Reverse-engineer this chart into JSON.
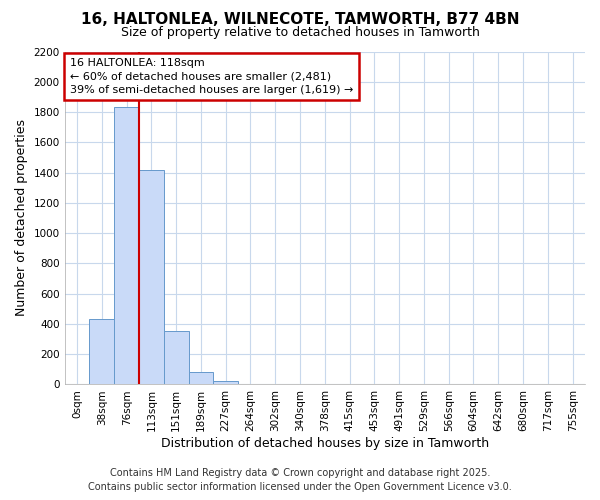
{
  "title": "16, HALTONLEA, WILNECOTE, TAMWORTH, B77 4BN",
  "subtitle": "Size of property relative to detached houses in Tamworth",
  "xlabel": "Distribution of detached houses by size in Tamworth",
  "ylabel": "Number of detached properties",
  "categories": [
    "0sqm",
    "38sqm",
    "76sqm",
    "113sqm",
    "151sqm",
    "189sqm",
    "227sqm",
    "264sqm",
    "302sqm",
    "340sqm",
    "378sqm",
    "415sqm",
    "453sqm",
    "491sqm",
    "529sqm",
    "566sqm",
    "604sqm",
    "642sqm",
    "680sqm",
    "717sqm",
    "755sqm"
  ],
  "values": [
    0,
    430,
    1830,
    1420,
    350,
    80,
    25,
    5,
    0,
    0,
    0,
    0,
    0,
    0,
    0,
    0,
    0,
    0,
    0,
    0,
    0
  ],
  "bar_color": "#c9daf8",
  "bar_edge_color": "#6699cc",
  "vline_index": 2.5,
  "vline_color": "#cc0000",
  "annotation_text": "16 HALTONLEA: 118sqm\n← 60% of detached houses are smaller (2,481)\n39% of semi-detached houses are larger (1,619) →",
  "annotation_box_color": "#ffffff",
  "annotation_box_edge": "#cc0000",
  "ylim": [
    0,
    2200
  ],
  "yticks": [
    0,
    200,
    400,
    600,
    800,
    1000,
    1200,
    1400,
    1600,
    1800,
    2000,
    2200
  ],
  "footer_line1": "Contains HM Land Registry data © Crown copyright and database right 2025.",
  "footer_line2": "Contains public sector information licensed under the Open Government Licence v3.0.",
  "bg_color": "#ffffff",
  "plot_bg_color": "#ffffff",
  "grid_color": "#c8d8ec",
  "title_fontsize": 11,
  "subtitle_fontsize": 9,
  "axis_label_fontsize": 9,
  "tick_fontsize": 7.5,
  "footer_fontsize": 7
}
